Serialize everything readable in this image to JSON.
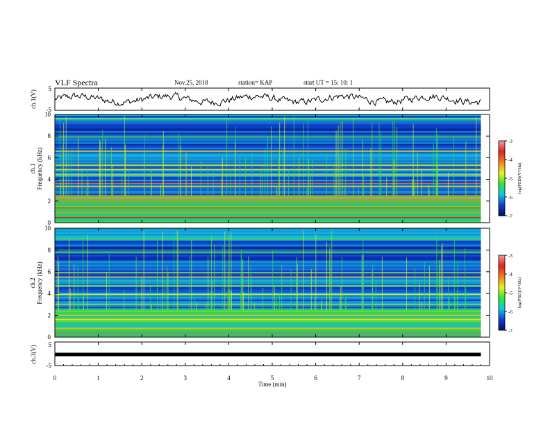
{
  "header": {
    "title": "VLF Spectra",
    "date": "Nov.25, 2018",
    "station": "station= KAP",
    "start": "start  UT  =   15: 10: 1"
  },
  "chart_data": [
    {
      "type": "line",
      "ylabel": "ch.1(V)",
      "ylim": [
        -5,
        5
      ],
      "yticks": [
        "5",
        "-5"
      ],
      "xlim": [
        0,
        10
      ],
      "series": [
        {
          "color": "#000000"
        }
      ]
    },
    {
      "type": "heatmap",
      "ylabel_channel": "ch.1",
      "ylabel": "Frequency (kHz)",
      "ylim": [
        0,
        10
      ],
      "yticks": [
        "0",
        "2",
        "4",
        "6",
        "8",
        "10"
      ],
      "xlim": [
        0,
        9.8
      ],
      "bands": [
        {
          "f": 0.45,
          "level": 0.85
        },
        {
          "f": 0.95,
          "level": 0.7
        },
        {
          "f": 1.35,
          "level": 0.8
        },
        {
          "f": 1.9,
          "level": 0.72
        },
        {
          "f": 2.2,
          "level": 0.95
        },
        {
          "f": 2.45,
          "level": 0.75
        },
        {
          "f": 3.3,
          "level": 0.6
        },
        {
          "f": 3.6,
          "level": 0.75
        },
        {
          "f": 4.4,
          "level": 0.55
        },
        {
          "f": 4.9,
          "level": 0.6
        },
        {
          "f": 5.3,
          "level": 0.55
        },
        {
          "f": 6.6,
          "level": 0.62
        },
        {
          "f": 7.9,
          "level": 0.45
        },
        {
          "f": 9.6,
          "level": 0.5
        }
      ]
    },
    {
      "type": "heatmap",
      "ylabel_channel": "ch.2",
      "ylabel": "Frequency (kHz)",
      "ylim": [
        0,
        10
      ],
      "yticks": [
        "0",
        "2",
        "4",
        "6",
        "8",
        "10"
      ],
      "xlim": [
        0,
        9.8
      ],
      "bands": [
        {
          "f": 0.3,
          "level": 0.75
        },
        {
          "f": 0.8,
          "level": 0.65
        },
        {
          "f": 1.6,
          "level": 0.6
        },
        {
          "f": 2.0,
          "level": 0.62
        },
        {
          "f": 3.0,
          "level": 0.5
        },
        {
          "f": 3.9,
          "level": 0.55
        },
        {
          "f": 4.7,
          "level": 0.5
        },
        {
          "f": 5.5,
          "level": 0.6
        },
        {
          "f": 5.9,
          "level": 0.5
        },
        {
          "f": 7.8,
          "level": 0.45
        },
        {
          "f": 9.0,
          "level": 0.45
        }
      ]
    },
    {
      "type": "line",
      "ylabel": "ch.3(V)",
      "ylim": [
        -5,
        5
      ],
      "yticks": [
        "5",
        "-5"
      ],
      "xlim": [
        0,
        9.8
      ],
      "series": [
        {
          "value": 0,
          "color": "#000000"
        }
      ]
    }
  ],
  "xaxis": {
    "label": "Time  (min)",
    "ticks": [
      "0",
      "1",
      "2",
      "3",
      "4",
      "5",
      "6",
      "7",
      "8",
      "9",
      "10"
    ],
    "range": [
      0,
      10
    ]
  },
  "colorbar": {
    "label": "log(PSD)(V²/Hz)",
    "ticks": [
      "-3",
      "-4",
      "-5",
      "-6",
      "-7"
    ],
    "range": [
      -7,
      -3
    ],
    "colors": [
      "#0b0b64",
      "#1040d0",
      "#14c8e0",
      "#30e830",
      "#f0f020",
      "#f08020",
      "#e02020",
      "#f0a0a0"
    ]
  }
}
